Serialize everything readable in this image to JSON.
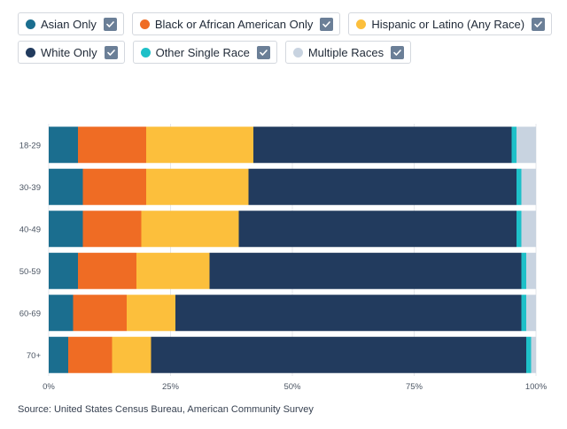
{
  "legend": {
    "rows": [
      [
        {
          "label": "Asian Only",
          "color": "#1b6e8f",
          "checked": true
        },
        {
          "label": "Black or African American Only",
          "color": "#ef6c24",
          "checked": true
        },
        {
          "label": "Hispanic or Latino (Any Race)",
          "color": "#fcbf3c",
          "checked": true
        }
      ],
      [
        {
          "label": "White Only",
          "color": "#223b5e",
          "checked": true
        },
        {
          "label": "Other Single Race",
          "color": "#1ec0c8",
          "checked": true
        },
        {
          "label": "Multiple Races",
          "color": "#c8d3e0",
          "checked": true
        }
      ]
    ]
  },
  "chart_data": {
    "type": "bar",
    "orientation": "horizontal",
    "stacked": true,
    "normalized": true,
    "categories": [
      "18-29",
      "30-39",
      "40-49",
      "50-59",
      "60-69",
      "70+"
    ],
    "series": [
      {
        "name": "Asian Only",
        "color": "#1b6e8f",
        "values": [
          6,
          7,
          7,
          6,
          5,
          4
        ]
      },
      {
        "name": "Black or African American Only",
        "color": "#ef6c24",
        "values": [
          14,
          13,
          12,
          12,
          11,
          9
        ]
      },
      {
        "name": "Hispanic or Latino (Any Race)",
        "color": "#fcbf3c",
        "values": [
          22,
          21,
          20,
          15,
          10,
          8
        ]
      },
      {
        "name": "White Only",
        "color": "#223b5e",
        "values": [
          53,
          55,
          57,
          64,
          71,
          77
        ]
      },
      {
        "name": "Other Single Race",
        "color": "#1ec0c8",
        "values": [
          1,
          1,
          1,
          1,
          1,
          1
        ]
      },
      {
        "name": "Multiple Races",
        "color": "#c8d3e0",
        "values": [
          4,
          3,
          3,
          2,
          2,
          1
        ]
      }
    ],
    "x_ticks": [
      "0%",
      "25%",
      "50%",
      "75%",
      "100%"
    ],
    "xlim": [
      0,
      100
    ],
    "grid": true,
    "legend_placement": "top"
  },
  "source": "Source: United States Census Bureau, American Community Survey"
}
